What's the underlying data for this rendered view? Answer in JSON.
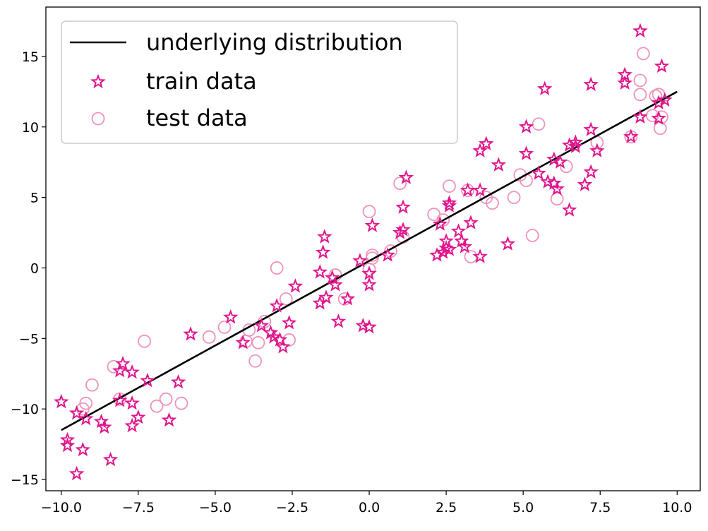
{
  "chart_data": {
    "type": "scatter",
    "title": "",
    "xlabel": "",
    "ylabel": "",
    "xlim": [
      -10.5,
      10.75
    ],
    "ylim": [
      -15.8,
      18.5
    ],
    "xticks": [
      -10.0,
      -7.5,
      -5.0,
      -2.5,
      0.0,
      2.5,
      5.0,
      7.5,
      10.0
    ],
    "xtick_labels": [
      "−10.0",
      "−7.5",
      "−5.0",
      "−2.5",
      "0.0",
      "2.5",
      "5.0",
      "7.5",
      "10.0"
    ],
    "yticks": [
      -15,
      -10,
      -5,
      0,
      5,
      10,
      15
    ],
    "ytick_labels": [
      "−15",
      "−10",
      "−5",
      "0",
      "5",
      "10",
      "15"
    ],
    "grid": false,
    "legend_position": "upper-left",
    "colors": {
      "line": "#000000",
      "train": "#e0148c",
      "test": "#ef93bb"
    },
    "series": [
      {
        "name": "underlying distribution",
        "kind": "line",
        "points": [
          [
            -10.0,
            -11.5
          ],
          [
            10.0,
            12.5
          ]
        ]
      },
      {
        "name": "train data",
        "kind": "star",
        "points": [
          [
            -10,
            -9.5
          ],
          [
            -9.8,
            -12.2
          ],
          [
            -9.8,
            -12.6
          ],
          [
            -9.5,
            -10.3
          ],
          [
            -9.5,
            -14.6
          ],
          [
            -9.3,
            -12.9
          ],
          [
            -9.2,
            -10.7
          ],
          [
            -8.7,
            -10.9
          ],
          [
            -8.6,
            -11.3
          ],
          [
            -8.4,
            -13.6
          ],
          [
            -8.1,
            -9.4
          ],
          [
            -8.1,
            -7.3
          ],
          [
            -8,
            -6.8
          ],
          [
            -7.7,
            -7.4
          ],
          [
            -7.7,
            -9.6
          ],
          [
            -7.7,
            -11.2
          ],
          [
            -7.5,
            -10.6
          ],
          [
            -7.2,
            -8
          ],
          [
            -6.5,
            -10.8
          ],
          [
            -6.2,
            -8.1
          ],
          [
            -5.8,
            -4.7
          ],
          [
            -4.5,
            -3.5
          ],
          [
            -4.1,
            -5.3
          ],
          [
            -3.5,
            -4.1
          ],
          [
            -3.2,
            -4.6
          ],
          [
            -3.1,
            -4.9
          ],
          [
            -3,
            -2.7
          ],
          [
            -2.9,
            -5.1
          ],
          [
            -2.8,
            -5.6
          ],
          [
            -2.6,
            -3.9
          ],
          [
            -2.4,
            -1.3
          ],
          [
            -1.6,
            -2.5
          ],
          [
            -1.6,
            -0.3
          ],
          [
            -1.5,
            1.1
          ],
          [
            -1.45,
            2.2
          ],
          [
            -1.4,
            -2.1
          ],
          [
            -1.2,
            -0.7
          ],
          [
            -1.1,
            -1.2
          ],
          [
            -1,
            -3.8
          ],
          [
            -0.7,
            -2.2
          ],
          [
            -0.3,
            0.5
          ],
          [
            -0.2,
            -4.1
          ],
          [
            0,
            -4.2
          ],
          [
            0,
            -0.4
          ],
          [
            0,
            -1.2
          ],
          [
            0.1,
            3
          ],
          [
            0.6,
            0.9
          ],
          [
            1,
            2.5
          ],
          [
            1.1,
            4.3
          ],
          [
            1.1,
            2.7
          ],
          [
            1.2,
            6.4
          ],
          [
            2.2,
            0.9
          ],
          [
            2.3,
            3.1
          ],
          [
            2.4,
            1.1
          ],
          [
            2.5,
            1.4
          ],
          [
            2.5,
            1.9
          ],
          [
            2.6,
            1.3
          ],
          [
            2.6,
            4.4
          ],
          [
            2.6,
            4.6
          ],
          [
            2.9,
            2.6
          ],
          [
            3,
            1.9
          ],
          [
            3.1,
            1.5
          ],
          [
            3.2,
            5.5
          ],
          [
            3.3,
            3.2
          ],
          [
            3.6,
            0.8
          ],
          [
            3.6,
            5.5
          ],
          [
            3.6,
            8.3
          ],
          [
            3.8,
            8.8
          ],
          [
            4.2,
            7.3
          ],
          [
            4.5,
            1.7
          ],
          [
            5.1,
            10
          ],
          [
            5.1,
            8.1
          ],
          [
            5.5,
            6.7
          ],
          [
            5.7,
            12.7
          ],
          [
            5.8,
            6.1
          ],
          [
            6,
            7.7
          ],
          [
            6,
            6
          ],
          [
            6.1,
            5.6
          ],
          [
            6.2,
            7.5
          ],
          [
            6.5,
            4.1
          ],
          [
            6.5,
            8.7
          ],
          [
            6.7,
            8.9
          ],
          [
            6.7,
            8.6
          ],
          [
            7,
            5.9
          ],
          [
            7.2,
            6.8
          ],
          [
            7.2,
            9.8
          ],
          [
            7.2,
            13
          ],
          [
            7.4,
            8.3
          ],
          [
            8.3,
            13.1
          ],
          [
            8.3,
            13.7
          ],
          [
            8.5,
            9.3
          ],
          [
            8.8,
            10.7
          ],
          [
            8.8,
            16.8
          ],
          [
            9.4,
            11.7
          ],
          [
            9.4,
            10.6
          ],
          [
            9.5,
            14.3
          ],
          [
            9.6,
            11.9
          ]
        ]
      },
      {
        "name": "test data",
        "kind": "circle",
        "points": [
          [
            -9.3,
            -10
          ],
          [
            -9.2,
            -9.6
          ],
          [
            -9,
            -8.3
          ],
          [
            -8.3,
            -7
          ],
          [
            -8.1,
            -9.3
          ],
          [
            -7.3,
            -5.2
          ],
          [
            -6.9,
            -9.8
          ],
          [
            -6.6,
            -9.3
          ],
          [
            -6.1,
            -9.6
          ],
          [
            -5.2,
            -4.9
          ],
          [
            -4.7,
            -4.2
          ],
          [
            -4,
            -5.2
          ],
          [
            -3.9,
            -4.4
          ],
          [
            -3.7,
            -6.6
          ],
          [
            -3.6,
            -5.3
          ],
          [
            -3.4,
            -3.8
          ],
          [
            -3,
            0
          ],
          [
            -2.7,
            -2.2
          ],
          [
            -2.6,
            -5.1
          ],
          [
            -1.1,
            -0.5
          ],
          [
            -0.8,
            -2.2
          ],
          [
            0,
            -0.1
          ],
          [
            0.1,
            0.9
          ],
          [
            0.1,
            0.7
          ],
          [
            0,
            4
          ],
          [
            0.7,
            1.2
          ],
          [
            1,
            6
          ],
          [
            1.1,
            2.2
          ],
          [
            2.1,
            3.8
          ],
          [
            2.4,
            3.4
          ],
          [
            2.6,
            5.8
          ],
          [
            3.2,
            5.5
          ],
          [
            3.3,
            0.8
          ],
          [
            3.8,
            5
          ],
          [
            4,
            4.6
          ],
          [
            4.7,
            5
          ],
          [
            4.9,
            6.6
          ],
          [
            5.1,
            6.2
          ],
          [
            5.3,
            2.3
          ],
          [
            5.5,
            10.2
          ],
          [
            6.1,
            4.9
          ],
          [
            6.4,
            7.2
          ],
          [
            7.4,
            8.9
          ],
          [
            8.5,
            9.3
          ],
          [
            8.8,
            13.3
          ],
          [
            8.8,
            12.3
          ],
          [
            8.9,
            15.2
          ],
          [
            9.2,
            10.8
          ],
          [
            9.3,
            12.2
          ],
          [
            9.4,
            12.3
          ],
          [
            9.45,
            9.9
          ],
          [
            9.5,
            10.7
          ]
        ]
      }
    ]
  }
}
